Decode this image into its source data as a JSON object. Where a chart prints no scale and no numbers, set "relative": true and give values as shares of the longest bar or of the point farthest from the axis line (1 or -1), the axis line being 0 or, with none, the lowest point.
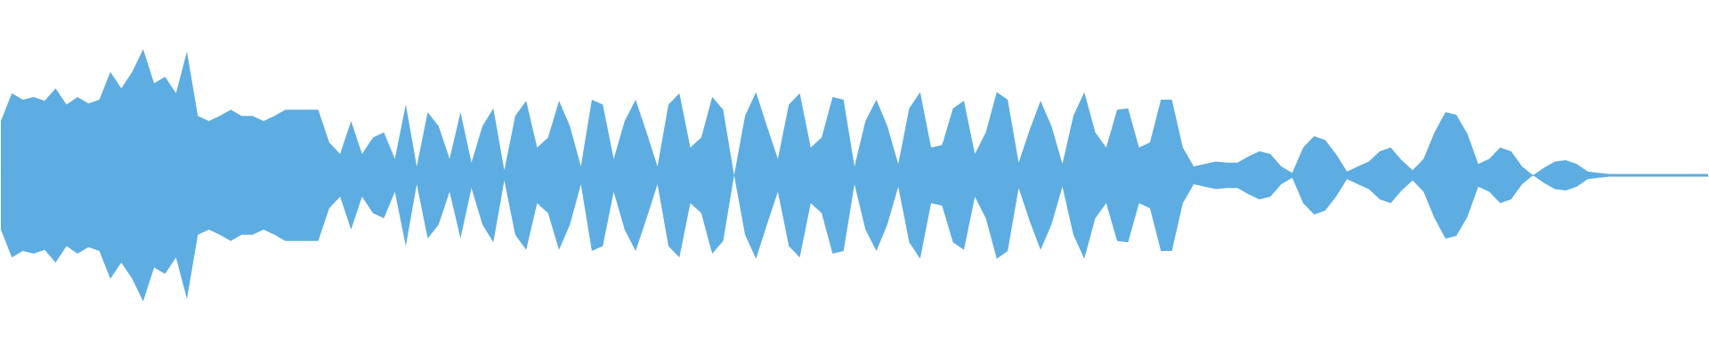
{
  "chart_data": {
    "type": "area",
    "relative": true,
    "ref_lines": [
      {
        "axis": "y",
        "value": 0,
        "color": "#5dade2"
      }
    ],
    "categories": [
      null,
      null,
      null,
      null,
      null,
      null,
      null,
      null,
      null,
      null,
      null,
      null,
      null,
      null,
      null,
      null,
      null,
      null,
      null,
      null,
      null,
      null,
      null,
      null,
      null,
      null,
      null,
      null,
      null,
      null,
      null,
      null,
      null,
      null,
      null,
      null,
      null,
      null,
      null,
      null,
      null,
      null,
      null,
      null,
      null,
      null,
      null,
      null,
      null,
      null,
      null,
      null,
      null,
      null,
      null,
      null,
      null,
      null,
      null,
      null,
      null,
      null,
      null,
      null,
      null,
      null,
      null,
      null,
      null,
      null,
      null,
      null,
      null,
      null,
      null,
      null,
      null,
      null,
      null,
      null,
      null,
      null,
      null,
      null,
      null,
      null,
      null,
      null,
      null,
      null,
      null,
      null,
      null,
      null,
      null,
      null,
      null,
      null,
      null,
      null,
      null,
      null,
      null,
      null,
      null,
      null,
      null,
      null,
      null,
      null,
      null,
      null,
      null,
      null,
      null,
      null,
      null,
      null,
      null,
      null,
      null,
      null,
      null,
      null,
      null,
      null,
      null,
      null,
      null,
      null,
      null,
      null,
      null,
      null,
      null,
      null,
      null,
      null,
      null,
      null,
      null,
      null,
      null,
      null,
      null,
      null,
      null,
      null,
      null,
      null,
      null,
      null,
      null,
      null,
      null,
      null,
      null
    ],
    "series": [
      {
        "color": "#5dade2",
        "values": [
          0.43,
          0.65,
          0.6,
          0.62,
          0.59,
          0.69,
          0.56,
          0.62,
          0.57,
          0.6,
          0.82,
          0.69,
          0.82,
          1,
          0.73,
          0.78,
          0.65,
          0.98,
          0.47,
          0.43,
          0.47,
          0.52,
          0.47,
          0.47,
          0.43,
          0.47,
          0.52,
          0.52,
          0.52,
          0.52,
          0.26,
          0.17,
          0.43,
          0.17,
          0.3,
          0.34,
          0.13,
          0.56,
          0.07,
          0.5,
          0.39,
          0.13,
          0.5,
          0.1,
          0.39,
          0.53,
          0.04,
          0.47,
          0.59,
          0.22,
          0.3,
          0.59,
          0.39,
          0.07,
          0.6,
          0.56,
          0.13,
          0.43,
          0.6,
          0.34,
          0.07,
          0.56,
          0.65,
          0.22,
          0.3,
          0.62,
          0.52,
          0,
          0.47,
          0.66,
          0.39,
          0.13,
          0.56,
          0.65,
          0.22,
          0.3,
          0.62,
          0.6,
          0.07,
          0.43,
          0.6,
          0.39,
          0.09,
          0.53,
          0.66,
          0.22,
          0.24,
          0.53,
          0.59,
          0.17,
          0.34,
          0.66,
          0.6,
          0.1,
          0.36,
          0.59,
          0.39,
          0.09,
          0.47,
          0.66,
          0.34,
          0.22,
          0.52,
          0.53,
          0.22,
          0.26,
          0.6,
          0.6,
          0.22,
          0.07,
          0.09,
          0.11,
          0.1,
          0.1,
          0.15,
          0.19,
          0.17,
          0.07,
          0.02,
          0.22,
          0.31,
          0.28,
          0.17,
          0.03,
          0.07,
          0.11,
          0.19,
          0.22,
          0.12,
          0.04,
          0.13,
          0.34,
          0.5,
          0.48,
          0.33,
          0.09,
          0.13,
          0.22,
          0.19,
          0.07,
          0,
          0.06,
          0.11,
          0.12,
          0.09,
          0.03,
          0.02,
          0.01,
          0.01,
          0.01,
          0.01,
          0.01,
          0.01,
          0.01,
          0.01,
          0.01,
          0.01
        ]
      },
      {
        "color": "#5dade2",
        "values": [
          -0.43,
          -0.65,
          -0.6,
          -0.62,
          -0.59,
          -0.69,
          -0.56,
          -0.62,
          -0.57,
          -0.6,
          -0.82,
          -0.69,
          -0.82,
          -1,
          -0.73,
          -0.78,
          -0.65,
          -0.98,
          -0.47,
          -0.43,
          -0.47,
          -0.52,
          -0.47,
          -0.47,
          -0.43,
          -0.47,
          -0.52,
          -0.52,
          -0.52,
          -0.52,
          -0.26,
          -0.17,
          -0.43,
          -0.17,
          -0.3,
          -0.34,
          -0.13,
          -0.56,
          -0.07,
          -0.5,
          -0.39,
          -0.13,
          -0.5,
          -0.1,
          -0.39,
          -0.53,
          -0.04,
          -0.47,
          -0.59,
          -0.22,
          -0.3,
          -0.59,
          -0.39,
          -0.07,
          -0.6,
          -0.56,
          -0.13,
          -0.43,
          -0.6,
          -0.34,
          -0.07,
          -0.56,
          -0.65,
          -0.22,
          -0.3,
          -0.62,
          -0.52,
          0,
          -0.47,
          -0.66,
          -0.39,
          -0.13,
          -0.56,
          -0.65,
          -0.22,
          -0.3,
          -0.62,
          -0.6,
          -0.07,
          -0.43,
          -0.6,
          -0.39,
          -0.09,
          -0.53,
          -0.66,
          -0.22,
          -0.24,
          -0.53,
          -0.59,
          -0.17,
          -0.34,
          -0.66,
          -0.6,
          -0.1,
          -0.36,
          -0.59,
          -0.39,
          -0.09,
          -0.47,
          -0.66,
          -0.34,
          -0.22,
          -0.52,
          -0.53,
          -0.22,
          -0.26,
          -0.6,
          -0.6,
          -0.22,
          -0.07,
          -0.09,
          -0.11,
          -0.1,
          -0.1,
          -0.15,
          -0.19,
          -0.17,
          -0.07,
          -0.02,
          -0.22,
          -0.31,
          -0.28,
          -0.17,
          -0.03,
          -0.07,
          -0.11,
          -0.19,
          -0.22,
          -0.12,
          -0.04,
          -0.13,
          -0.34,
          -0.5,
          -0.48,
          -0.33,
          -0.09,
          -0.13,
          -0.22,
          -0.19,
          -0.07,
          0,
          -0.06,
          -0.11,
          -0.12,
          -0.09,
          -0.03,
          -0.02,
          -0.01,
          -0.01,
          -0.01,
          -0.01,
          -0.01,
          -0.01,
          -0.01,
          -0.01,
          -0.01,
          -0.01
        ]
      }
    ]
  }
}
